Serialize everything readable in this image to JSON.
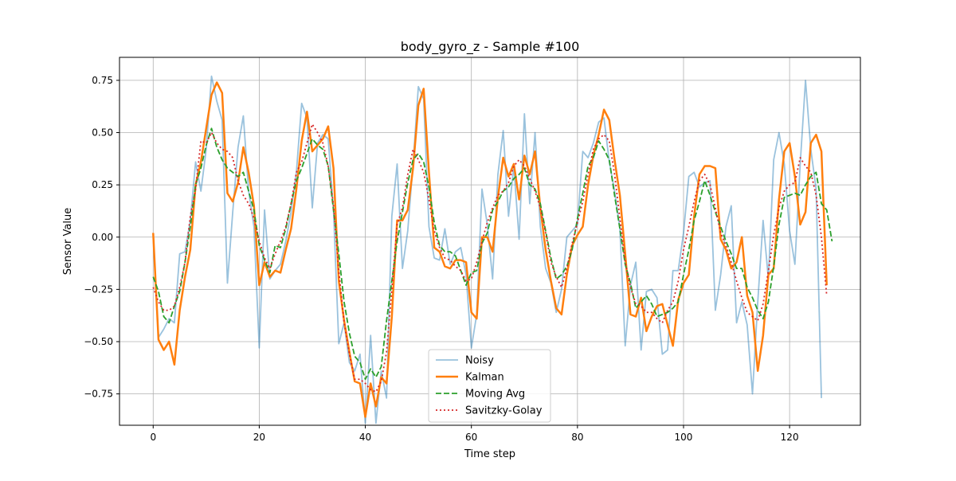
{
  "chart_data": {
    "type": "line",
    "title": "body_gyro_z - Sample #100",
    "xlabel": "Time step",
    "ylabel": "Sensor Value",
    "xlim": [
      -6.35,
      133.35
    ],
    "ylim": [
      -0.9,
      0.86
    ],
    "xticks": [
      0,
      20,
      40,
      60,
      80,
      100,
      120
    ],
    "yticks": [
      -0.75,
      -0.5,
      -0.25,
      0.0,
      0.25,
      0.5,
      0.75
    ],
    "ytick_labels": [
      "−0.75",
      "−0.50",
      "−0.25",
      "0.00",
      "0.25",
      "0.50",
      "0.75"
    ],
    "grid": true,
    "legend_position": "lower-center",
    "series": [
      {
        "name": "Noisy",
        "color": "#1f77b4",
        "style": "solid-thin-translucent",
        "values": [
          0.01,
          -0.48,
          -0.44,
          -0.39,
          -0.41,
          -0.08,
          -0.07,
          0.08,
          0.36,
          0.22,
          0.42,
          0.77,
          0.65,
          0.56,
          -0.22,
          0.12,
          0.43,
          0.58,
          0.22,
          0.05,
          -0.53,
          0.13,
          -0.2,
          -0.16,
          -0.13,
          -0.02,
          0.12,
          0.31,
          0.64,
          0.57,
          0.14,
          0.45,
          0.49,
          0.47,
          0.13,
          -0.51,
          -0.41,
          -0.6,
          -0.64,
          -0.56,
          -0.89,
          -0.47,
          -0.89,
          -0.64,
          -0.77,
          0.1,
          0.35,
          -0.15,
          0.03,
          0.35,
          0.72,
          0.66,
          0.05,
          -0.1,
          -0.11,
          0.04,
          -0.13,
          -0.07,
          -0.05,
          -0.18,
          -0.53,
          -0.37,
          0.23,
          0.06,
          -0.2,
          0.3,
          0.51,
          0.1,
          0.34,
          -0.01,
          0.59,
          0.16,
          0.5,
          0.05,
          -0.15,
          -0.22,
          -0.36,
          -0.25,
          0.0,
          0.03,
          0.06,
          0.41,
          0.38,
          0.45,
          0.55,
          0.57,
          0.36,
          0.22,
          0.04,
          -0.52,
          -0.23,
          -0.12,
          -0.54,
          -0.26,
          -0.25,
          -0.29,
          -0.56,
          -0.54,
          -0.16,
          -0.16,
          0.02,
          0.29,
          0.31,
          0.24,
          0.26,
          0.27,
          -0.35,
          -0.18,
          0.05,
          0.15,
          -0.41,
          -0.31,
          -0.42,
          -0.75,
          -0.31,
          0.08,
          -0.2,
          0.37,
          0.5,
          0.35,
          0.03,
          -0.13,
          0.35,
          0.75,
          0.42,
          0.23,
          -0.77
        ]
      },
      {
        "name": "Kalman",
        "color": "#ff7f0e",
        "style": "solid-thick",
        "values": [
          0.02,
          -0.49,
          -0.54,
          -0.5,
          -0.61,
          -0.35,
          -0.19,
          -0.06,
          0.25,
          0.36,
          0.52,
          0.68,
          0.74,
          0.69,
          0.21,
          0.17,
          0.26,
          0.43,
          0.31,
          0.15,
          -0.23,
          -0.12,
          -0.19,
          -0.16,
          -0.17,
          -0.06,
          0.04,
          0.23,
          0.46,
          0.6,
          0.41,
          0.44,
          0.47,
          0.53,
          0.33,
          -0.21,
          -0.4,
          -0.55,
          -0.69,
          -0.7,
          -0.86,
          -0.7,
          -0.81,
          -0.67,
          -0.7,
          -0.38,
          0.08,
          0.08,
          0.13,
          0.33,
          0.63,
          0.71,
          0.31,
          -0.05,
          -0.07,
          -0.14,
          -0.15,
          -0.11,
          -0.11,
          -0.12,
          -0.36,
          -0.39,
          0.0,
          0.0,
          -0.07,
          0.19,
          0.38,
          0.29,
          0.35,
          0.18,
          0.39,
          0.3,
          0.41,
          0.14,
          -0.06,
          -0.21,
          -0.34,
          -0.37,
          -0.18,
          -0.04,
          0.01,
          0.05,
          0.25,
          0.39,
          0.49,
          0.61,
          0.56,
          0.37,
          0.2,
          -0.08,
          -0.37,
          -0.38,
          -0.29,
          -0.45,
          -0.38,
          -0.33,
          -0.32,
          -0.42,
          -0.52,
          -0.3,
          -0.22,
          -0.18,
          0.1,
          0.3,
          0.34,
          0.34,
          0.33,
          -0.01,
          -0.06,
          -0.15,
          -0.12,
          0.0,
          -0.28,
          -0.36,
          -0.64,
          -0.47,
          -0.18,
          -0.15,
          0.18,
          0.41,
          0.45,
          0.29,
          0.06,
          0.12,
          0.45,
          0.49,
          0.41,
          -0.23
        ]
      },
      {
        "name": "Moving Avg",
        "color": "#2ca02c",
        "style": "dashed",
        "values": [
          -0.19,
          -0.26,
          -0.38,
          -0.41,
          -0.33,
          -0.26,
          -0.12,
          0.05,
          0.25,
          0.33,
          0.44,
          0.52,
          0.43,
          0.37,
          0.33,
          0.31,
          0.29,
          0.31,
          0.22,
          0.13,
          -0.04,
          -0.11,
          -0.17,
          -0.04,
          -0.05,
          0.04,
          0.16,
          0.27,
          0.33,
          0.4,
          0.47,
          0.44,
          0.42,
          0.34,
          0.13,
          -0.08,
          -0.31,
          -0.46,
          -0.57,
          -0.6,
          -0.68,
          -0.63,
          -0.67,
          -0.62,
          -0.4,
          -0.21,
          -0.02,
          0.12,
          0.26,
          0.37,
          0.4,
          0.36,
          0.24,
          0.07,
          -0.04,
          -0.07,
          -0.07,
          -0.09,
          -0.16,
          -0.23,
          -0.17,
          -0.16,
          -0.03,
          0.02,
          0.13,
          0.17,
          0.22,
          0.24,
          0.28,
          0.3,
          0.33,
          0.25,
          0.23,
          0.16,
          0.03,
          -0.1,
          -0.2,
          -0.18,
          -0.14,
          -0.06,
          0.09,
          0.21,
          0.34,
          0.38,
          0.46,
          0.42,
          0.37,
          0.2,
          0.04,
          -0.13,
          -0.22,
          -0.34,
          -0.31,
          -0.28,
          -0.32,
          -0.38,
          -0.37,
          -0.36,
          -0.34,
          -0.31,
          -0.18,
          -0.06,
          0.08,
          0.17,
          0.27,
          0.2,
          0.12,
          0.05,
          -0.02,
          -0.08,
          -0.15,
          -0.15,
          -0.24,
          -0.29,
          -0.35,
          -0.39,
          -0.31,
          -0.14,
          0.06,
          0.19,
          0.2,
          0.21,
          0.2,
          0.25,
          0.29,
          0.31,
          0.16,
          0.13,
          -0.02
        ]
      },
      {
        "name": "Savitzky-Golay",
        "color": "#d62728",
        "style": "dotted",
        "values": [
          -0.24,
          -0.31,
          -0.35,
          -0.35,
          -0.33,
          -0.24,
          -0.12,
          0.1,
          0.23,
          0.46,
          0.45,
          0.5,
          0.45,
          0.42,
          0.41,
          0.38,
          0.27,
          0.2,
          0.16,
          0.09,
          -0.02,
          -0.1,
          -0.15,
          -0.08,
          -0.02,
          0.05,
          0.16,
          0.31,
          0.36,
          0.45,
          0.54,
          0.5,
          0.45,
          0.34,
          0.15,
          -0.16,
          -0.41,
          -0.56,
          -0.68,
          -0.68,
          -0.7,
          -0.73,
          -0.74,
          -0.69,
          -0.55,
          -0.25,
          0.06,
          0.14,
          0.3,
          0.42,
          0.37,
          0.31,
          0.18,
          0.03,
          -0.05,
          -0.1,
          -0.11,
          -0.14,
          -0.16,
          -0.21,
          -0.2,
          -0.12,
          -0.02,
          0.07,
          0.14,
          0.2,
          0.22,
          0.26,
          0.34,
          0.37,
          0.34,
          0.28,
          0.22,
          0.14,
          0.02,
          -0.12,
          -0.19,
          -0.24,
          -0.15,
          -0.03,
          0.07,
          0.17,
          0.3,
          0.42,
          0.47,
          0.49,
          0.46,
          0.3,
          0.09,
          -0.12,
          -0.24,
          -0.32,
          -0.33,
          -0.36,
          -0.36,
          -0.39,
          -0.41,
          -0.35,
          -0.31,
          -0.21,
          -0.06,
          0.05,
          0.17,
          0.27,
          0.3,
          0.25,
          0.14,
          0.02,
          -0.04,
          -0.12,
          -0.21,
          -0.29,
          -0.36,
          -0.38,
          -0.4,
          -0.32,
          -0.16,
          0.01,
          0.14,
          0.22,
          0.25,
          0.26,
          0.38,
          0.34,
          0.31,
          0.2,
          0.0,
          -0.28
        ]
      }
    ]
  }
}
